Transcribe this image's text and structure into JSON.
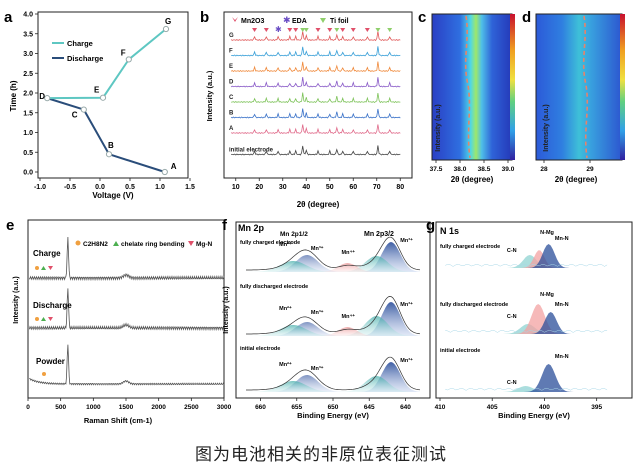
{
  "figure": {
    "caption": "图为电池相关的非原位表征测试",
    "colors": {
      "charge": "#5ec7c2",
      "discharge": "#2a4d7a",
      "mn2o3": "#e0506a",
      "eda": "#6a4dc4",
      "ti": "#8fcf6b"
    }
  },
  "panel_a": {
    "letter": "a",
    "xlabel": "Voltage (V)",
    "ylabel": "Time (h)",
    "xticks": [
      "-1.0",
      "-0.5",
      "0.0",
      "0.5",
      "1.0",
      "1.5"
    ],
    "yticks": [
      "0.0",
      "0.5",
      "1.0",
      "1.5",
      "2.0",
      "2.5",
      "3.0",
      "3.5",
      "4.0"
    ],
    "legend": [
      "Charge",
      "Discharge"
    ],
    "points": [
      {
        "label": "A",
        "v": 1.08,
        "t": 0.0
      },
      {
        "label": "B",
        "v": 0.15,
        "t": 0.45
      },
      {
        "label": "C",
        "v": -0.27,
        "t": 1.58
      },
      {
        "label": "D",
        "v": -0.88,
        "t": 1.87
      },
      {
        "label": "E",
        "v": 0.05,
        "t": 1.88
      },
      {
        "label": "F",
        "v": 0.48,
        "t": 2.85
      },
      {
        "label": "G",
        "v": 1.1,
        "t": 3.62
      }
    ]
  },
  "panel_b": {
    "letter": "b",
    "legend": [
      "Mn2O3",
      "EDA",
      "Ti foil"
    ],
    "xlabel": "2θ (degree)",
    "ylabel": "Intensity (a.u.)",
    "xticks": [
      "10",
      "20",
      "30",
      "40",
      "50",
      "60",
      "70",
      "80"
    ],
    "curves": [
      {
        "label": "G",
        "color": "#e05a5a"
      },
      {
        "label": "F",
        "color": "#3aa0d8"
      },
      {
        "label": "E",
        "color": "#f08a3c"
      },
      {
        "label": "D",
        "color": "#8a5cc8"
      },
      {
        "label": "C",
        "color": "#7ec35a"
      },
      {
        "label": "B",
        "color": "#3a72c8"
      },
      {
        "label": "A",
        "color": "#e06a8a"
      },
      {
        "label": "initial electrode",
        "color": "#444444"
      }
    ]
  },
  "panel_c": {
    "letter": "c",
    "ylabel": "Intensity (a.u.)",
    "xlabel": "2θ (degree)",
    "xticks": [
      "37.5",
      "38.0",
      "38.5",
      "39.0"
    ]
  },
  "panel_d": {
    "letter": "d",
    "ylabel": "Intensity (a.u.)",
    "xlabel": "2θ (degree)",
    "xticks": [
      "28",
      "29"
    ]
  },
  "panel_e": {
    "letter": "e",
    "legend": [
      "C2H8N2",
      "chelate ring bending",
      "Mg-N"
    ],
    "xlabel": "Raman Shift (cm-1)",
    "ylabel": "Intensity (a.u.)",
    "xticks": [
      "0",
      "500",
      "1000",
      "1500",
      "2000",
      "2500",
      "3000"
    ],
    "curves": [
      "Charge",
      "Discharge",
      "Powder"
    ]
  },
  "panel_f": {
    "letter": "f",
    "title": "Mn 2p",
    "xlabel": "Binding Energy (eV)",
    "ylabel": "Intensity (a.u.)",
    "xticks": [
      "660",
      "655",
      "650",
      "645",
      "640"
    ],
    "peak_labels": {
      "p12": "Mn 2p1/2",
      "p32": "Mn 2p3/2",
      "mn2": "Mn²⁺",
      "mn3": "Mn³⁺",
      "mn4": "Mn⁴⁺"
    },
    "spectra": [
      "fully charged electrode",
      "fully discharged electrode",
      "initial electrode"
    ]
  },
  "panel_g": {
    "letter": "g",
    "title": "N 1s",
    "xlabel": "Binding Energy (eV)",
    "xticks": [
      "410",
      "405",
      "400",
      "395"
    ],
    "peak_labels": {
      "cn": "C-N",
      "nmg": "N-Mg",
      "mnn": "Mn-N"
    },
    "spectra": [
      "fully charged electrode",
      "fully discharged electrode",
      "initial electrode"
    ]
  }
}
